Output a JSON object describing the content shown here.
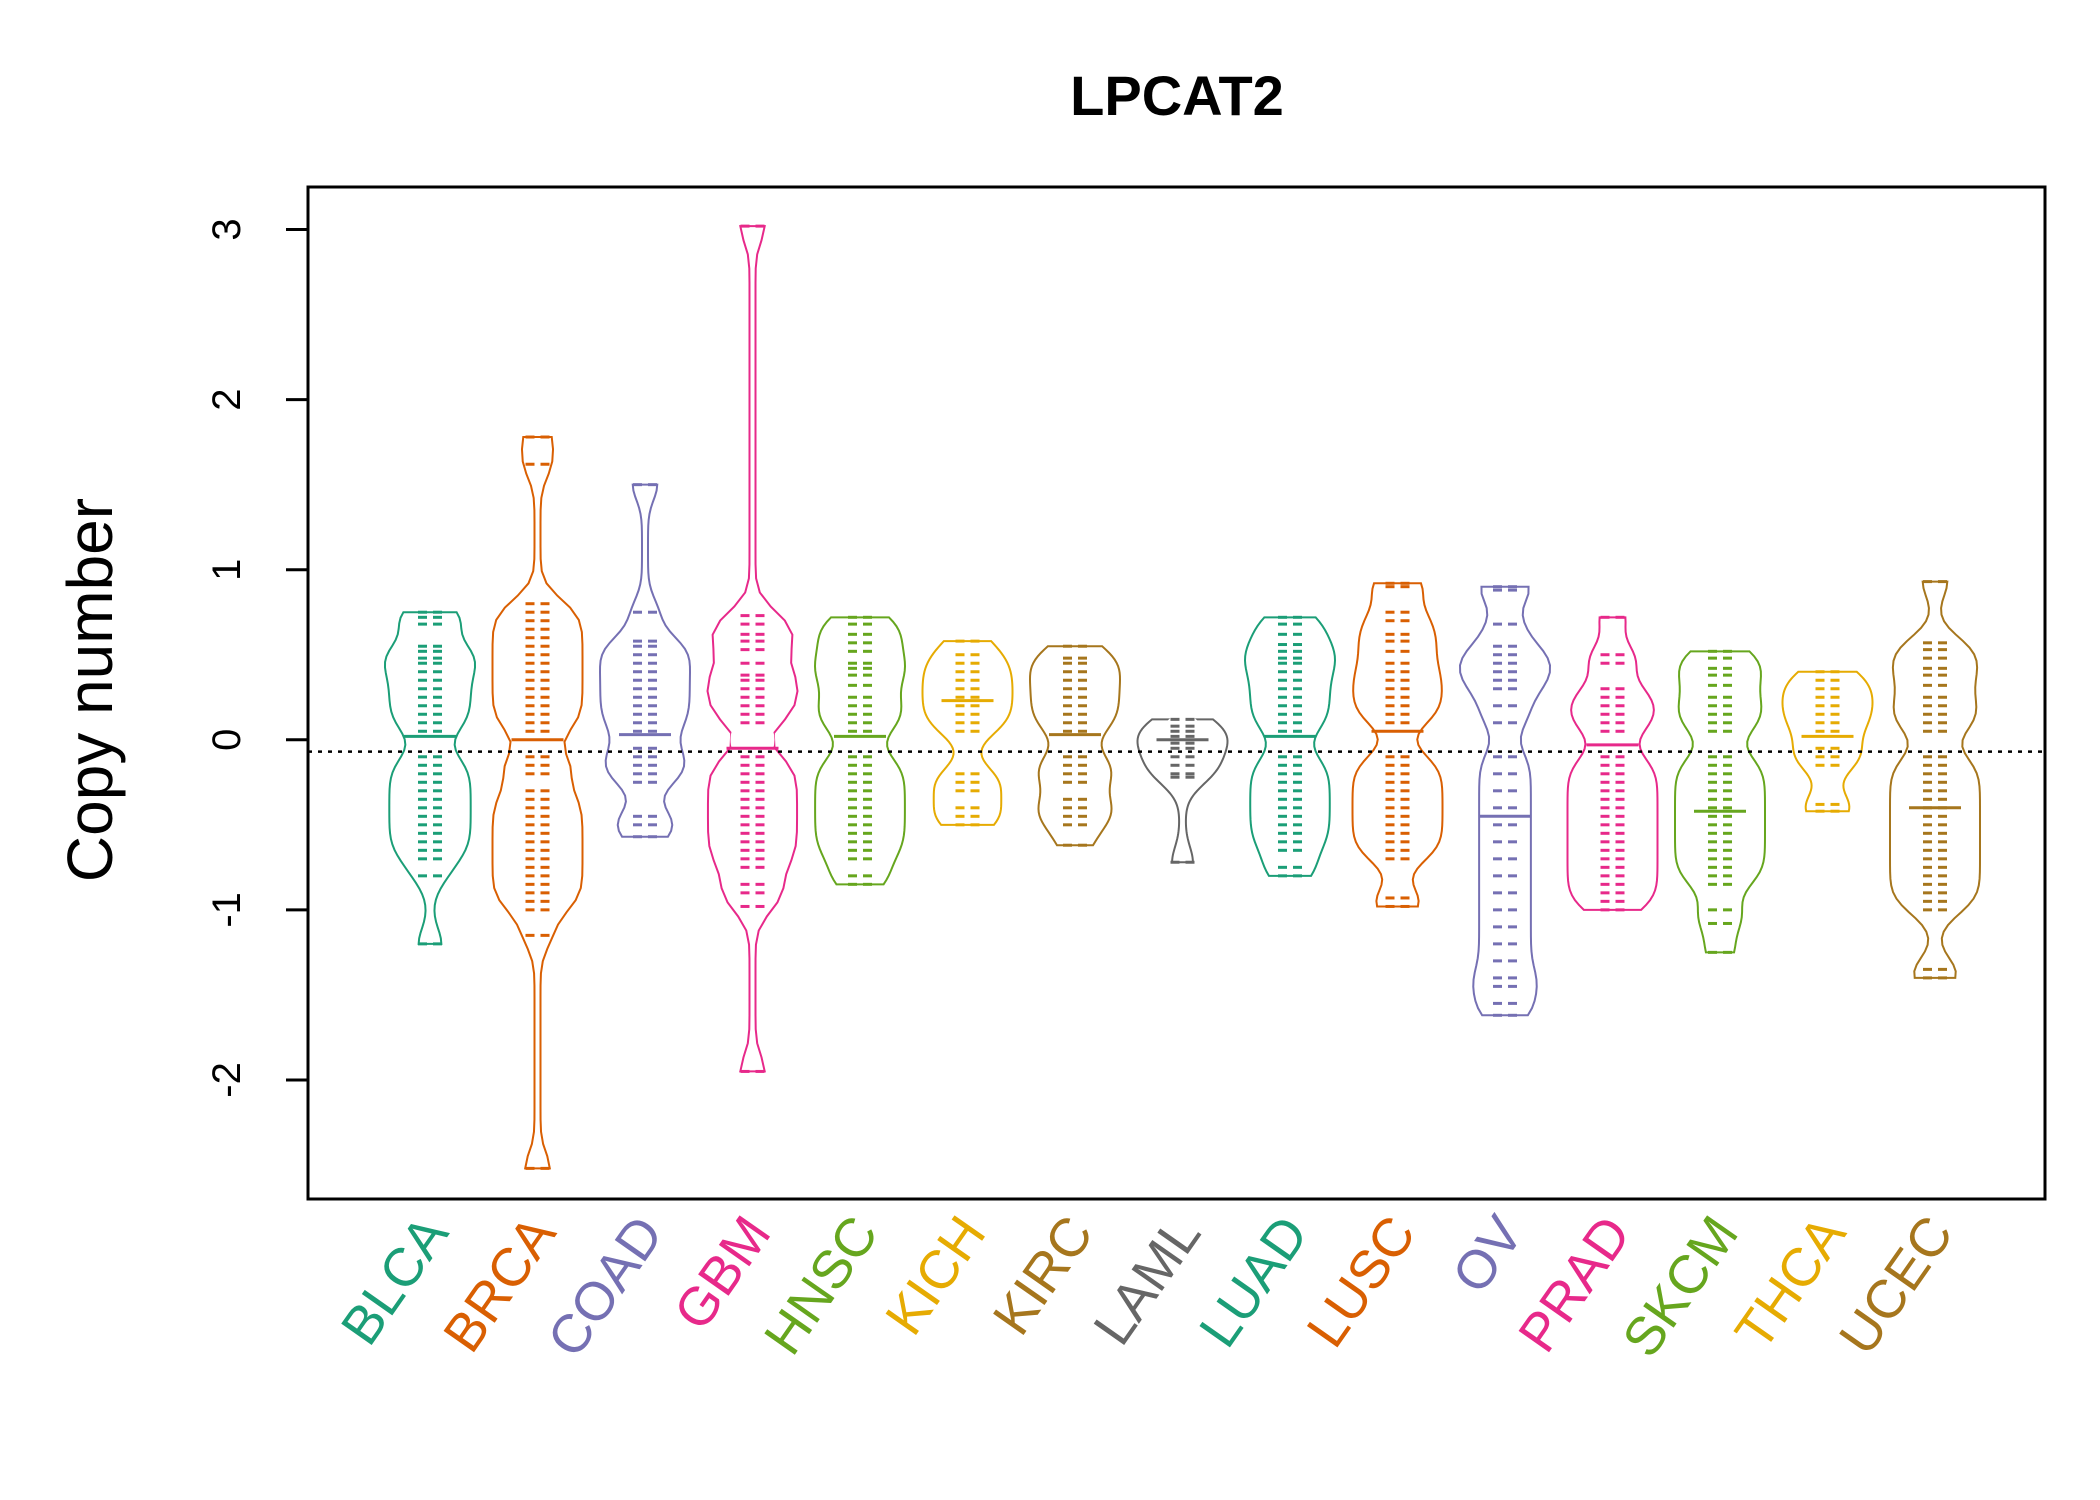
{
  "chart_data": {
    "type": "beanplot",
    "title": "LPCAT2",
    "ylabel": "Copy number",
    "xlabel": "",
    "ylim": [
      -2.7,
      3.25
    ],
    "yticks": [
      -2,
      -1,
      0,
      1,
      2,
      3
    ],
    "ytick_labels": [
      "-2",
      "-1",
      "0",
      "1",
      "2",
      "3"
    ],
    "reference_line": -0.07,
    "categories": [
      "BLCA",
      "BRCA",
      "COAD",
      "GBM",
      "HNSC",
      "KICH",
      "KIRC",
      "LAML",
      "LUAD",
      "LUSC",
      "OV",
      "PRAD",
      "SKCM",
      "THCA",
      "UCEC"
    ],
    "series": [
      {
        "name": "BLCA",
        "color": "#1b9e77",
        "mean": 0.02,
        "center": 0.0,
        "points": [
          0.75,
          0.72,
          0.68,
          0.55,
          0.52,
          0.48,
          0.45,
          0.4,
          0.35,
          0.3,
          0.25,
          0.2,
          0.15,
          0.1,
          0.05,
          -0.1,
          -0.15,
          -0.2,
          -0.25,
          -0.3,
          -0.35,
          -0.4,
          -0.45,
          -0.5,
          -0.55,
          -0.6,
          -0.65,
          -0.7,
          -0.8,
          -1.2
        ]
      },
      {
        "name": "BRCA",
        "color": "#d95f02",
        "mean": 0.0,
        "center": 0.0,
        "points": [
          1.78,
          1.62,
          0.8,
          0.75,
          0.7,
          0.65,
          0.6,
          0.55,
          0.5,
          0.45,
          0.4,
          0.35,
          0.3,
          0.25,
          0.2,
          0.15,
          0.1,
          0.05,
          -0.1,
          -0.15,
          -0.2,
          -0.3,
          -0.35,
          -0.4,
          -0.45,
          -0.5,
          -0.55,
          -0.6,
          -0.65,
          -0.7,
          -0.75,
          -0.8,
          -0.85,
          -0.9,
          -0.95,
          -1.0,
          -1.15,
          -2.52
        ]
      },
      {
        "name": "COAD",
        "color": "#7570b3",
        "mean": 0.03,
        "center": 0.05,
        "points": [
          1.5,
          0.75,
          0.58,
          0.55,
          0.5,
          0.45,
          0.4,
          0.35,
          0.3,
          0.25,
          0.2,
          0.15,
          0.1,
          0.05,
          -0.05,
          -0.1,
          -0.15,
          -0.2,
          -0.25,
          -0.45,
          -0.5,
          -0.57
        ]
      },
      {
        "name": "GBM",
        "color": "#e7298a",
        "mean": -0.05,
        "center": 0.0,
        "points": [
          3.02,
          0.73,
          0.68,
          0.62,
          0.58,
          0.53,
          0.45,
          0.38,
          0.35,
          0.3,
          0.25,
          0.2,
          0.15,
          0.1,
          -0.1,
          -0.15,
          -0.2,
          -0.25,
          -0.3,
          -0.35,
          -0.4,
          -0.45,
          -0.5,
          -0.55,
          -0.6,
          -0.65,
          -0.7,
          -0.75,
          -0.85,
          -0.9,
          -0.98,
          -1.95
        ]
      },
      {
        "name": "HNSC",
        "color": "#66a61e",
        "mean": 0.02,
        "center": 0.0,
        "points": [
          0.72,
          0.68,
          0.62,
          0.57,
          0.52,
          0.45,
          0.42,
          0.38,
          0.32,
          0.25,
          0.2,
          0.15,
          0.1,
          0.05,
          -0.1,
          -0.15,
          -0.2,
          -0.25,
          -0.3,
          -0.35,
          -0.4,
          -0.45,
          -0.5,
          -0.55,
          -0.6,
          -0.65,
          -0.7,
          -0.8,
          -0.85
        ]
      },
      {
        "name": "KICH",
        "color": "#e6ab02",
        "mean": 0.23,
        "center": 0.3,
        "points": [
          0.58,
          0.5,
          0.45,
          0.4,
          0.35,
          0.3,
          0.25,
          0.2,
          0.15,
          0.1,
          0.05,
          -0.2,
          -0.25,
          -0.3,
          -0.4,
          -0.45,
          -0.5
        ]
      },
      {
        "name": "KIRC",
        "color": "#a6761d",
        "mean": 0.03,
        "center": 0.02,
        "points": [
          0.55,
          0.48,
          0.45,
          0.4,
          0.35,
          0.3,
          0.25,
          0.2,
          0.15,
          0.1,
          0.05,
          -0.1,
          -0.15,
          -0.2,
          -0.25,
          -0.35,
          -0.4,
          -0.45,
          -0.5,
          -0.62
        ]
      },
      {
        "name": "LAML",
        "color": "#666666",
        "mean": 0.0,
        "center": 0.0,
        "points": [
          0.12,
          0.08,
          0.05,
          0.02,
          -0.02,
          -0.05,
          -0.1,
          -0.15,
          -0.2,
          -0.22,
          -0.72
        ]
      },
      {
        "name": "LUAD",
        "color": "#1b9e77",
        "mean": 0.02,
        "center": 0.0,
        "points": [
          0.72,
          0.68,
          0.62,
          0.56,
          0.52,
          0.48,
          0.45,
          0.4,
          0.35,
          0.3,
          0.25,
          0.2,
          0.15,
          0.1,
          0.05,
          -0.1,
          -0.15,
          -0.2,
          -0.25,
          -0.3,
          -0.35,
          -0.4,
          -0.45,
          -0.5,
          -0.55,
          -0.6,
          -0.65,
          -0.75,
          -0.8
        ]
      },
      {
        "name": "LUSC",
        "color": "#d95f02",
        "mean": 0.05,
        "center": 0.1,
        "points": [
          0.92,
          0.9,
          0.75,
          0.7,
          0.62,
          0.58,
          0.52,
          0.45,
          0.4,
          0.35,
          0.3,
          0.25,
          0.2,
          0.15,
          0.1,
          -0.1,
          -0.15,
          -0.2,
          -0.25,
          -0.3,
          -0.35,
          -0.4,
          -0.45,
          -0.5,
          -0.55,
          -0.6,
          -0.65,
          -0.7,
          -0.93,
          -0.98
        ]
      },
      {
        "name": "OV",
        "color": "#7570b3",
        "mean": -0.45,
        "center": -0.3,
        "points": [
          0.9,
          0.88,
          0.68,
          0.55,
          0.5,
          0.45,
          0.4,
          0.35,
          0.3,
          0.2,
          0.1,
          -0.1,
          -0.2,
          -0.3,
          -0.4,
          -0.5,
          -0.6,
          -0.7,
          -0.8,
          -0.9,
          -1.0,
          -1.1,
          -1.2,
          -1.3,
          -1.4,
          -1.45,
          -1.55,
          -1.62
        ]
      },
      {
        "name": "PRAD",
        "color": "#e7298a",
        "mean": -0.03,
        "center": 0.0,
        "points": [
          0.72,
          0.5,
          0.45,
          0.3,
          0.25,
          0.2,
          0.15,
          0.1,
          0.05,
          -0.1,
          -0.15,
          -0.2,
          -0.25,
          -0.3,
          -0.35,
          -0.4,
          -0.45,
          -0.5,
          -0.55,
          -0.6,
          -0.65,
          -0.7,
          -0.75,
          -0.8,
          -0.85,
          -0.9,
          -0.95,
          -1.0
        ]
      },
      {
        "name": "SKCM",
        "color": "#66a61e",
        "mean": -0.42,
        "center": -0.05,
        "points": [
          0.52,
          0.48,
          0.42,
          0.38,
          0.32,
          0.25,
          0.2,
          0.15,
          0.1,
          0.05,
          -0.1,
          -0.15,
          -0.2,
          -0.25,
          -0.3,
          -0.35,
          -0.4,
          -0.45,
          -0.5,
          -0.55,
          -0.6,
          -0.65,
          -0.7,
          -0.75,
          -0.8,
          -0.85,
          -1.0,
          -1.08,
          -1.25
        ]
      },
      {
        "name": "THCA",
        "color": "#e6ab02",
        "mean": 0.02,
        "center": 0.02,
        "points": [
          0.4,
          0.35,
          0.3,
          0.25,
          0.2,
          0.15,
          0.1,
          0.05,
          -0.05,
          -0.1,
          -0.15,
          -0.38,
          -0.42
        ]
      },
      {
        "name": "UCEC",
        "color": "#a6761d",
        "mean": -0.4,
        "center": 0.0,
        "points": [
          0.93,
          0.57,
          0.53,
          0.48,
          0.42,
          0.38,
          0.32,
          0.25,
          0.2,
          0.15,
          0.1,
          0.05,
          -0.1,
          -0.15,
          -0.2,
          -0.25,
          -0.3,
          -0.35,
          -0.4,
          -0.45,
          -0.5,
          -0.55,
          -0.6,
          -0.65,
          -0.7,
          -0.75,
          -0.8,
          -0.85,
          -0.9,
          -0.95,
          -1.0,
          -1.35,
          -1.4
        ]
      }
    ]
  }
}
